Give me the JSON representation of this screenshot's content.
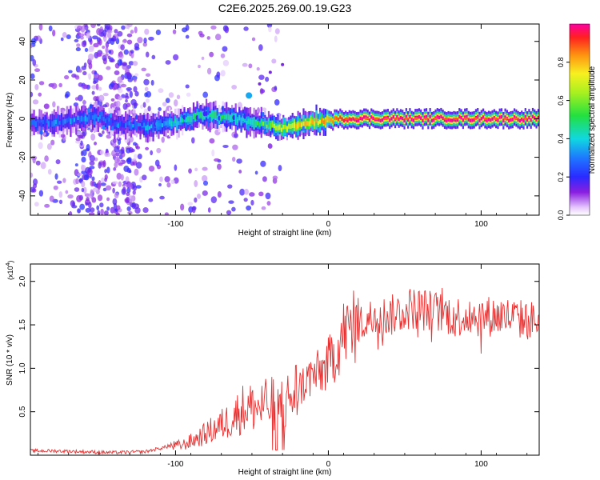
{
  "figure_title": "C2E6.2025.269.00.19.G23",
  "colorbar": {
    "label": "Normalized spectral amplitude",
    "ticks": [
      "0.0",
      "0.2",
      "0.4",
      "0.6",
      "0.8"
    ],
    "tick_values": [
      0.0,
      0.2,
      0.4,
      0.6,
      0.8
    ]
  },
  "chart_data": [
    {
      "type": "heatmap",
      "title": "C2E6.2025.269.00.19.G23",
      "xlabel": "Height of straight line (km)",
      "ylabel": "Frequency (Hz)",
      "xlim": [
        -195,
        138
      ],
      "ylim": [
        -50,
        49
      ],
      "x_ticks": [
        -100,
        0,
        100
      ],
      "x_tick_labels": [
        "-100",
        "0",
        "100"
      ],
      "y_ticks": [
        -40,
        -20,
        0,
        20,
        40
      ],
      "y_tick_labels": [
        "-40",
        "-20",
        "0",
        "20",
        "40"
      ],
      "color_scale": "rainbow (purple = 0.0, red = 1.0)",
      "color_range": [
        0,
        1
      ],
      "centerline": {
        "x": [
          -195,
          -170,
          -155,
          -140,
          -120,
          -100,
          -85,
          -70,
          -55,
          -40,
          -30,
          -20,
          -10,
          0,
          10,
          20,
          60,
          100,
          138
        ],
        "frequency": [
          -3,
          -1,
          1,
          -2,
          -4,
          -2,
          2,
          1,
          -1,
          -3,
          -5,
          -4,
          -2,
          -1,
          0,
          0,
          0,
          0,
          0
        ],
        "amplitude": [
          0.25,
          0.3,
          0.3,
          0.25,
          0.3,
          0.4,
          0.45,
          0.45,
          0.45,
          0.55,
          0.7,
          0.75,
          0.75,
          0.8,
          0.95,
          1.0,
          1.0,
          1.0,
          1.0
        ]
      },
      "scatter_band_x": [
        -165,
        -125
      ]
    },
    {
      "type": "line",
      "xlabel": "Height of straight line (km)",
      "ylabel": "SNR (10 * v/v)",
      "y_multiplier": "(x10⁴)",
      "y_multiplier_base": "(x10",
      "y_multiplier_exp": "4",
      "y_multiplier_close": ")",
      "xlim": [
        -195,
        138
      ],
      "ylim": [
        0,
        2.2
      ],
      "x_ticks": [
        -100,
        0,
        100
      ],
      "x_tick_labels": [
        "-100",
        "0",
        "100"
      ],
      "y_ticks": [
        0.5,
        1.0,
        1.5,
        2.0
      ],
      "y_tick_labels": [
        "0.5",
        "1.0",
        "1.5",
        "2.0"
      ],
      "series": [
        {
          "name": "SNR",
          "color": "#e83030",
          "x": [
            -195,
            -180,
            -160,
            -140,
            -120,
            -105,
            -95,
            -85,
            -75,
            -65,
            -55,
            -45,
            -35,
            -28,
            -20,
            -12,
            -5,
            0,
            5,
            10,
            20,
            30,
            40,
            55,
            70,
            85,
            100,
            115,
            130,
            138
          ],
          "values": [
            0.05,
            0.05,
            0.04,
            0.03,
            0.04,
            0.1,
            0.12,
            0.2,
            0.3,
            0.4,
            0.55,
            0.55,
            0.6,
            0.6,
            0.75,
            0.9,
            0.95,
            1.05,
            1.2,
            1.4,
            1.5,
            1.6,
            1.6,
            1.7,
            1.65,
            1.6,
            1.6,
            1.6,
            1.55,
            1.55
          ]
        }
      ]
    }
  ]
}
